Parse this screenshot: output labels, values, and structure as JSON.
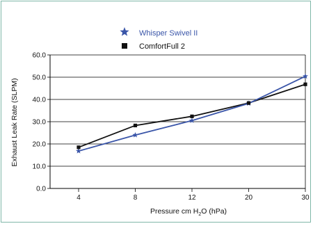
{
  "chart_data": {
    "type": "line",
    "categories": [
      "4",
      "8",
      "12",
      "20",
      "30"
    ],
    "xlabel_parts": [
      "Pressure cm H",
      "2",
      "O (hPa)"
    ],
    "ylabel": "Exhaust Leak Rate (SLPM)",
    "ylim": [
      0,
      60
    ],
    "yticks": [
      "0.0",
      "10.0",
      "20.0",
      "30.0",
      "40.0",
      "50.0",
      "60.0"
    ],
    "ytick_values": [
      0,
      10,
      20,
      30,
      40,
      50,
      60
    ],
    "grid": true,
    "legend_position": "top",
    "series": [
      {
        "name": "Whisper Swivel II",
        "marker": "star",
        "color": "#3a55a8",
        "values": [
          16.8,
          24.0,
          30.5,
          38.2,
          50.4
        ]
      },
      {
        "name": "ComfortFull 2",
        "marker": "square",
        "color": "#111111",
        "values": [
          18.5,
          28.3,
          32.4,
          38.4,
          46.8
        ]
      }
    ]
  }
}
